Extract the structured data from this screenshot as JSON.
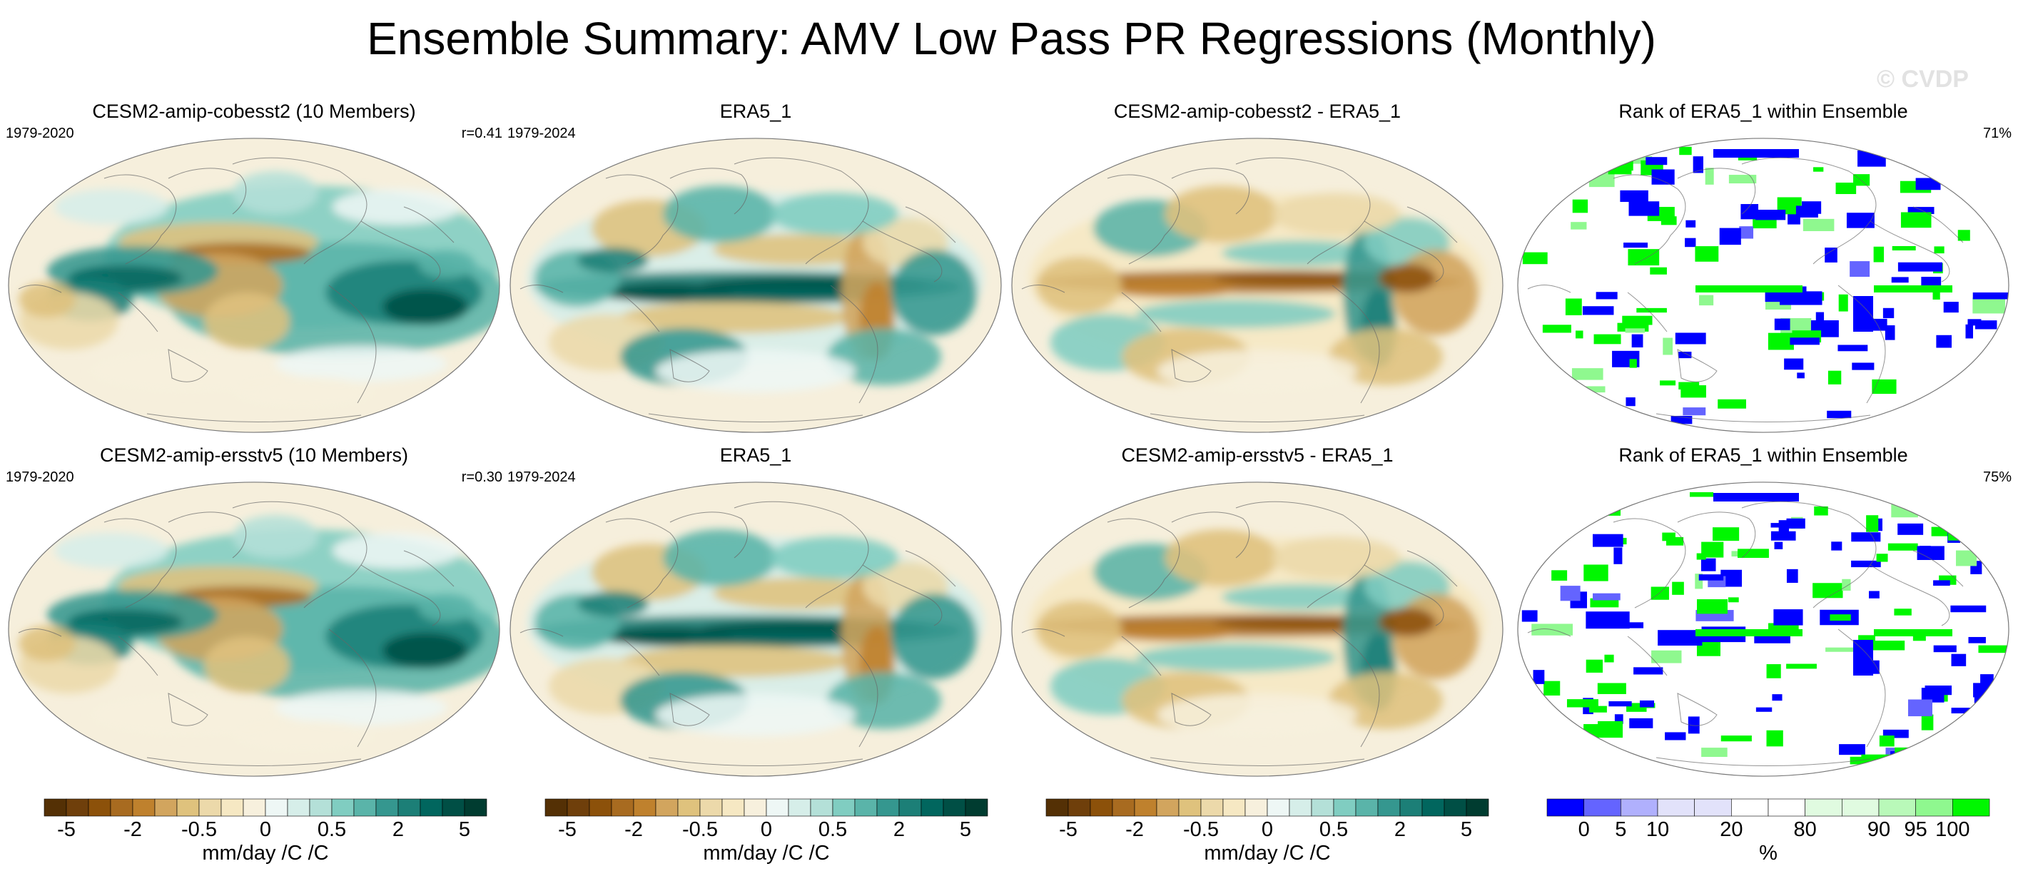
{
  "title": "Ensemble Summary: AMV Low Pass PR Regressions (Monthly)",
  "watermark": "© CVDP",
  "panels": [
    {
      "title": "CESM2-amip-cobesst2 (10 Members)",
      "left": "1979-2020",
      "right": "r=0.41",
      "kind": "reg"
    },
    {
      "title": "ERA5_1",
      "left": "1979-2024",
      "right": "",
      "kind": "reg"
    },
    {
      "title": "CESM2-amip-cobesst2 - ERA5_1",
      "left": "",
      "right": "",
      "kind": "reg"
    },
    {
      "title": "Rank of ERA5_1 within Ensemble",
      "left": "",
      "right": "71%",
      "kind": "rank"
    },
    {
      "title": "CESM2-amip-ersstv5 (10 Members)",
      "left": "1979-2020",
      "right": "r=0.30",
      "kind": "reg"
    },
    {
      "title": "ERA5_1",
      "left": "1979-2024",
      "right": "",
      "kind": "reg"
    },
    {
      "title": "CESM2-amip-ersstv5 - ERA5_1",
      "left": "",
      "right": "",
      "kind": "reg"
    },
    {
      "title": "Rank of ERA5_1 within Ensemble",
      "left": "",
      "right": "75%",
      "kind": "rank"
    }
  ],
  "colorbars": {
    "regression": {
      "colors": [
        "#543005",
        "#6f3f0b",
        "#8c510a",
        "#a86b20",
        "#bf812d",
        "#d2a55e",
        "#dfc27d",
        "#ecd9aa",
        "#f6e8c3",
        "#f7f0dd",
        "#eef7f5",
        "#d6eee9",
        "#b4e0d8",
        "#80cdc1",
        "#5ab4a9",
        "#35978f",
        "#1c7f77",
        "#01665e",
        "#004f45",
        "#003c30"
      ],
      "ticks": [
        "-5",
        "-2",
        "-0.5",
        "0",
        "0.5",
        "2",
        "5"
      ],
      "label": "mm/day /C /C"
    },
    "rank": {
      "colors": [
        "#0000ff",
        "#6464ff",
        "#b0b0fd",
        "#e2e2fa",
        "#e2e2fa",
        "#ffffff",
        "#ffffff",
        "#e0fbe0",
        "#e0fbe0",
        "#b9f9b9",
        "#8ff88f",
        "#00f700"
      ],
      "ticks": [
        "0",
        "5",
        "10",
        "20",
        "80",
        "90",
        "95",
        "100"
      ],
      "label": "%"
    }
  },
  "chart_data": [
    {
      "type": "heatmap",
      "title": "CESM2-amip-cobesst2 (10 Members)",
      "period": "1979-2020",
      "pattern_correlation": 0.41,
      "units": "mm/day /C /C",
      "colorbar_ticks": [
        -5,
        -2,
        -0.5,
        0,
        0.5,
        2,
        5
      ]
    },
    {
      "type": "heatmap",
      "title": "ERA5_1",
      "period": "1979-2024",
      "units": "mm/day /C /C",
      "colorbar_ticks": [
        -5,
        -2,
        -0.5,
        0,
        0.5,
        2,
        5
      ]
    },
    {
      "type": "heatmap",
      "title": "CESM2-amip-cobesst2 - ERA5_1",
      "units": "mm/day /C /C",
      "colorbar_ticks": [
        -5,
        -2,
        -0.5,
        0,
        0.5,
        2,
        5
      ]
    },
    {
      "type": "heatmap",
      "title": "Rank of ERA5_1 within Ensemble",
      "summary": "71%",
      "units": "%",
      "colorbar_ticks": [
        0,
        5,
        10,
        20,
        80,
        90,
        95,
        100
      ]
    },
    {
      "type": "heatmap",
      "title": "CESM2-amip-ersstv5 (10 Members)",
      "period": "1979-2020",
      "pattern_correlation": 0.3,
      "units": "mm/day /C /C",
      "colorbar_ticks": [
        -5,
        -2,
        -0.5,
        0,
        0.5,
        2,
        5
      ]
    },
    {
      "type": "heatmap",
      "title": "ERA5_1",
      "period": "1979-2024",
      "units": "mm/day /C /C",
      "colorbar_ticks": [
        -5,
        -2,
        -0.5,
        0,
        0.5,
        2,
        5
      ]
    },
    {
      "type": "heatmap",
      "title": "CESM2-amip-ersstv5 - ERA5_1",
      "units": "mm/day /C /C",
      "colorbar_ticks": [
        -5,
        -2,
        -0.5,
        0,
        0.5,
        2,
        5
      ]
    },
    {
      "type": "heatmap",
      "title": "Rank of ERA5_1 within Ensemble",
      "summary": "75%",
      "units": "%",
      "colorbar_ticks": [
        0,
        5,
        10,
        20,
        80,
        90,
        95,
        100
      ]
    }
  ]
}
